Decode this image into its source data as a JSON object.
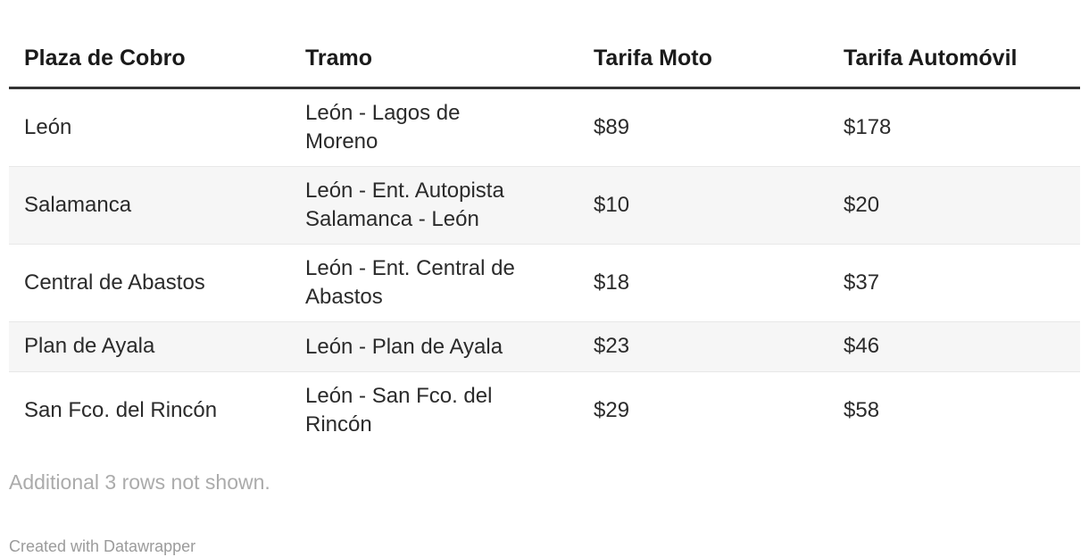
{
  "chart_data": {
    "type": "table",
    "columns": [
      "Plaza de Cobro",
      "Tramo",
      "Tarifa Moto",
      "Tarifa Automóvil"
    ],
    "rows": [
      [
        "León",
        "León - Lagos de Moreno",
        "$89",
        "$178"
      ],
      [
        "Salamanca",
        "León - Ent. Autopista Salamanca - León",
        "$10",
        "$20"
      ],
      [
        "Central de Abastos",
        "León - Ent. Central de Abastos",
        "$18",
        "$37"
      ],
      [
        "Plan de Ayala",
        "León - Plan de Ayala",
        "$23",
        "$46"
      ],
      [
        "San Fco. del Rincón",
        "León - San Fco. del Rincón",
        "$29",
        "$58"
      ]
    ],
    "title": "",
    "layout_hints": {
      "striped_rows": true,
      "striped_row_indexes": [
        1,
        3
      ],
      "header_rule": "thick-dark-bottom-border"
    }
  },
  "footer": {
    "note": "Additional 3 rows not shown.",
    "attribution": "Created with Datawrapper"
  },
  "colors": {
    "header_text": "#1a1a1a",
    "body_text": "#2b2b2b",
    "stripe_bg": "#f6f6f6",
    "row_border": "#e8e8e8",
    "header_border": "#333333",
    "note_text": "#ababab",
    "attribution_text": "#9b9b9b",
    "page_bg": "#ffffff"
  }
}
